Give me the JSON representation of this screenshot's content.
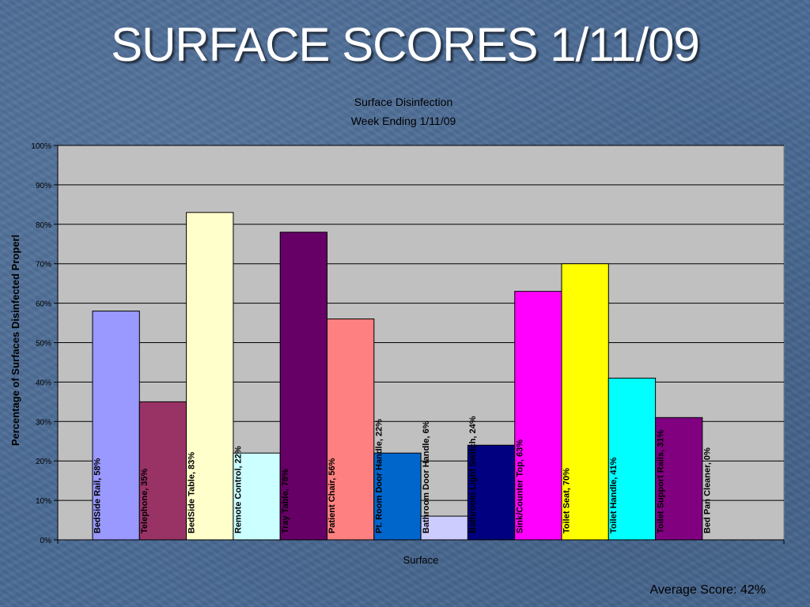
{
  "slide": {
    "title": "SURFACE SCORES 1/11/09",
    "average_score": "Average Score: 42%"
  },
  "colors": {
    "plot_background": "#c0c0c0",
    "gridline": "#000000"
  },
  "chart_data": {
    "type": "bar",
    "title_lines": [
      "Surface Disinfection",
      "Week Ending 1/11/09"
    ],
    "xlabel": "Surface",
    "ylabel": "Percentage of Surfaces Disinfected Properl",
    "ylim": [
      0,
      100
    ],
    "yticks": [
      "0%",
      "10%",
      "20%",
      "30%",
      "40%",
      "50%",
      "60%",
      "70%",
      "80%",
      "90%",
      "100%"
    ],
    "grid": true,
    "bars": [
      {
        "label": "BedSide Rail, 58%",
        "value": 58,
        "color": "#9999ff"
      },
      {
        "label": "Telephone, 35%",
        "value": 35,
        "color": "#993366"
      },
      {
        "label": "BedSide Table, 83%",
        "value": 83,
        "color": "#ffffcc"
      },
      {
        "label": "Remote Control, 22%",
        "value": 22,
        "color": "#ccffff"
      },
      {
        "label": "Tray Table, 78%",
        "value": 78,
        "color": "#660066"
      },
      {
        "label": "Patient Chair, 56%",
        "value": 56,
        "color": "#ff8080"
      },
      {
        "label": "Pt. Room Door Handle, 22%",
        "value": 22,
        "color": "#0066cc"
      },
      {
        "label": "Bathroom Door Handle, 6%",
        "value": 6,
        "color": "#ccccff"
      },
      {
        "label": "Bathroom Light Switch, 24%",
        "value": 24,
        "color": "#000080"
      },
      {
        "label": "Sink/Counter Top, 63%",
        "value": 63,
        "color": "#ff00ff"
      },
      {
        "label": "Toilet Seat, 70%",
        "value": 70,
        "color": "#ffff00"
      },
      {
        "label": "Toilet Handle, 41%",
        "value": 41,
        "color": "#00ffff"
      },
      {
        "label": "Toilet Support Rails, 31%",
        "value": 31,
        "color": "#800080"
      },
      {
        "label": "Bed Pan Cleaner, 0%",
        "value": 0,
        "color": "#c0c0c0"
      }
    ]
  }
}
